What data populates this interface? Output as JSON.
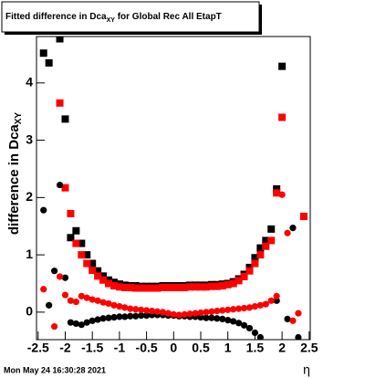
{
  "chart_data": {
    "type": "scatter",
    "title": "Fitted difference in Dca",
    "title_subscript": "XY",
    "title_suffix": " for Global Rec All EtapT",
    "y_label": "difference in Dca",
    "y_label_subscript": "XY",
    "x_label": "η",
    "timestamp": "Mon May 24 16:30:28 2021",
    "xlim": [
      -2.53,
      2.52
    ],
    "ylim": [
      -0.48,
      4.81
    ],
    "xticks": [
      -2.5,
      -2,
      -1.5,
      -1,
      -0.5,
      0,
      0.5,
      1,
      1.5,
      2,
      2.5
    ],
    "yticks": [
      0,
      1,
      2,
      3,
      4
    ],
    "x": [
      -2.4,
      -2.3,
      -2.2,
      -2.1,
      -2.0,
      -1.9,
      -1.8,
      -1.7,
      -1.6,
      -1.5,
      -1.4,
      -1.3,
      -1.2,
      -1.1,
      -1.0,
      -0.9,
      -0.8,
      -0.7,
      -0.6,
      -0.5,
      -0.4,
      -0.3,
      -0.2,
      -0.1,
      0,
      0.1,
      0.2,
      0.3,
      0.4,
      0.5,
      0.6,
      0.7,
      0.8,
      0.9,
      1.0,
      1.1,
      1.2,
      1.3,
      1.4,
      1.5,
      1.6,
      1.7,
      1.8,
      1.9,
      2.0,
      2.1,
      2.2,
      2.3,
      2.4
    ],
    "series": [
      {
        "color": "#000000",
        "marker": "square",
        "values": [
          4.52,
          4.35,
          null,
          4.77,
          3.37,
          1.3,
          1.42,
          1.2,
          1.0,
          0.85,
          0.72,
          0.63,
          0.56,
          0.52,
          0.49,
          0.47,
          0.46,
          0.46,
          0.45,
          0.45,
          0.45,
          0.45,
          0.46,
          0.46,
          0.46,
          0.46,
          0.46,
          0.47,
          0.47,
          0.47,
          0.47,
          0.48,
          0.48,
          0.49,
          0.5,
          0.53,
          0.58,
          0.66,
          0.78,
          0.95,
          1.12,
          1.25,
          1.45,
          2.15,
          4.29,
          null,
          null,
          null,
          null
        ]
      },
      {
        "color": "#ff0000",
        "marker": "square",
        "values": [
          null,
          null,
          null,
          3.65,
          2.17,
          1.72,
          1.2,
          1.0,
          0.85,
          0.73,
          0.63,
          0.56,
          0.5,
          0.46,
          0.44,
          0.43,
          0.43,
          0.42,
          0.42,
          0.42,
          0.42,
          0.42,
          0.43,
          0.43,
          0.43,
          0.43,
          0.43,
          0.44,
          0.44,
          0.44,
          0.44,
          0.45,
          0.45,
          0.46,
          0.48,
          0.5,
          0.55,
          0.62,
          0.72,
          0.85,
          1.0,
          1.15,
          1.25,
          2.08,
          3.4,
          null,
          null,
          null,
          1.67
        ]
      },
      {
        "color": "#000000",
        "marker": "circle",
        "values": [
          1.78,
          0.12,
          0.72,
          2.22,
          0.6,
          -0.18,
          -0.2,
          -0.22,
          -0.18,
          -0.15,
          -0.13,
          -0.11,
          -0.1,
          -0.09,
          -0.08,
          -0.08,
          -0.07,
          -0.07,
          -0.06,
          -0.06,
          -0.05,
          -0.05,
          -0.05,
          -0.06,
          -0.06,
          -0.07,
          -0.07,
          -0.08,
          -0.08,
          -0.09,
          -0.1,
          -0.1,
          -0.11,
          -0.12,
          -0.14,
          -0.16,
          -0.19,
          -0.23,
          -0.28,
          -0.36,
          -0.44,
          null,
          null,
          0.2,
          null,
          -0.12,
          1.47,
          -0.44,
          null
        ]
      },
      {
        "color": "#ff0000",
        "marker": "circle",
        "values": [
          0.4,
          null,
          -0.25,
          0.62,
          0.3,
          0.2,
          0.18,
          0.28,
          0.25,
          0.22,
          0.2,
          0.17,
          0.15,
          0.12,
          0.1,
          0.08,
          0.06,
          0.05,
          0.04,
          0.03,
          0.02,
          0.01,
          0,
          -0.02,
          -0.04,
          -0.05,
          -0.04,
          -0.03,
          -0.02,
          -0.01,
          0,
          0.01,
          0.02,
          0.03,
          0.04,
          0.05,
          0.06,
          0.07,
          0.08,
          0.1,
          0.12,
          0.14,
          0.2,
          0.28,
          2.05,
          1.38,
          -0.15,
          -0.02,
          null
        ]
      }
    ]
  }
}
